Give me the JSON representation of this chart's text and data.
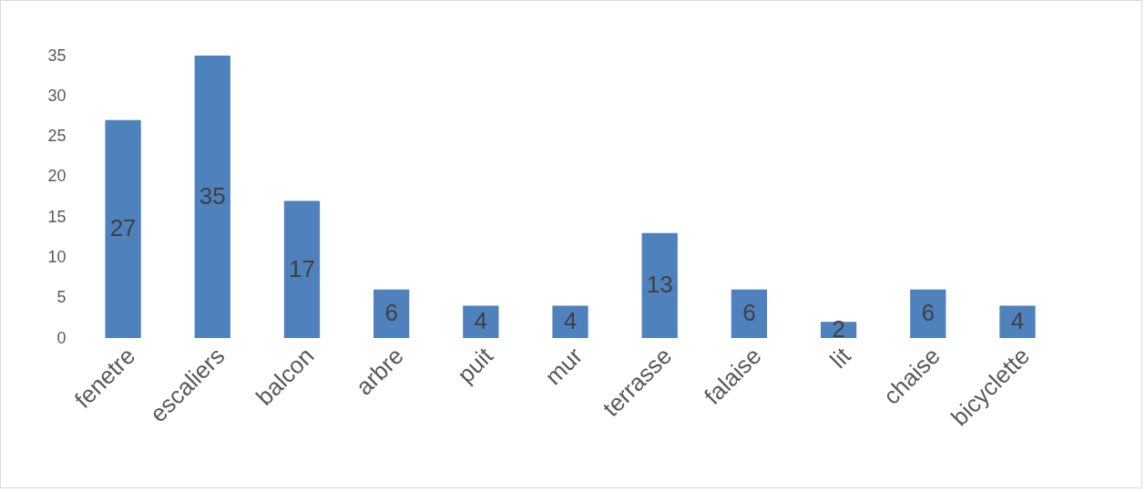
{
  "chart_data": {
    "type": "bar",
    "categories": [
      "fenetre",
      "escaliers",
      "balcon",
      "arbre",
      "puit",
      "mur",
      "terrasse",
      "falaise",
      "lit",
      "chaise",
      "bicyclette"
    ],
    "values": [
      27,
      35,
      17,
      6,
      4,
      4,
      13,
      6,
      2,
      6,
      4
    ],
    "color": "#4f81bd",
    "ylim": [
      0,
      35
    ],
    "yticks": [
      0,
      5,
      10,
      15,
      20,
      25,
      30,
      35
    ],
    "grid": false,
    "data_labels": true
  }
}
